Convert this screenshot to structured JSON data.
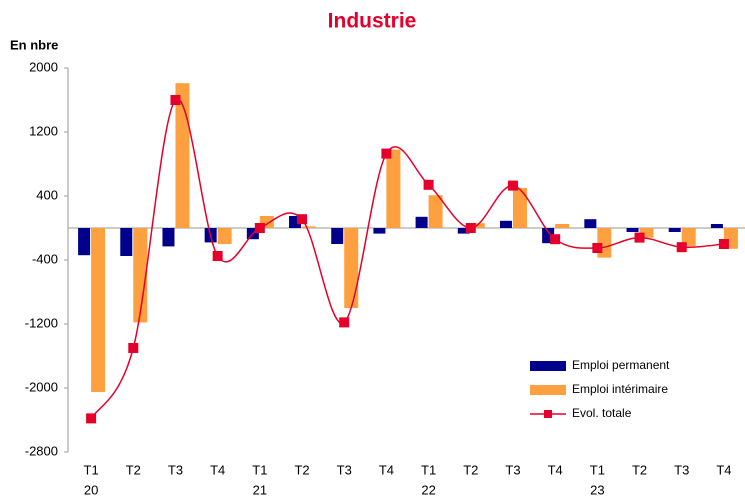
{
  "chart_data": {
    "type": "bar-line",
    "title": "Industrie",
    "y_label": "En nbre",
    "categories": [
      "T1",
      "T2",
      "T3",
      "T4",
      "T1",
      "T2",
      "T3",
      "T4",
      "T1",
      "T2",
      "T3",
      "T4",
      "T1",
      "T2",
      "T3",
      "T4"
    ],
    "x_groups": [
      "20",
      null,
      null,
      null,
      "21",
      null,
      null,
      null,
      "22",
      null,
      null,
      null,
      "23",
      null,
      null,
      null
    ],
    "series": [
      {
        "name": "Emploi permanent",
        "type": "bar",
        "color": "#00008b",
        "values": [
          -340,
          -350,
          -230,
          -180,
          -140,
          150,
          -200,
          -70,
          140,
          -70,
          90,
          -190,
          110,
          -50,
          -50,
          50
        ]
      },
      {
        "name": "Emploi intérimaire",
        "type": "bar",
        "color": "#ffa040",
        "values": [
          -2050,
          -1180,
          1810,
          -200,
          150,
          20,
          -1000,
          980,
          410,
          60,
          500,
          50,
          -370,
          -120,
          -230,
          -260
        ]
      },
      {
        "name": "Evol. totale",
        "type": "line",
        "color": "#e4002b",
        "values": [
          -2380,
          -1500,
          1600,
          -350,
          0,
          110,
          -1180,
          930,
          540,
          0,
          530,
          -140,
          -250,
          -120,
          -240,
          -200
        ]
      }
    ],
    "ylim": [
      -2800,
      2000
    ],
    "yticks": [
      -2800,
      -2000,
      -1200,
      -400,
      400,
      1200,
      2000
    ],
    "legend": "bottom-right"
  }
}
